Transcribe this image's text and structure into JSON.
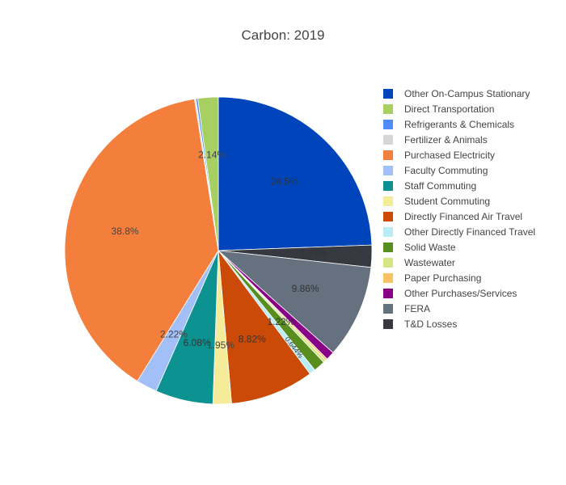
{
  "chart_data": {
    "type": "pie",
    "title": "Carbon: 2019",
    "direction": "clockwise",
    "start": "12 o'clock",
    "legend_position": "right",
    "slices": [
      {
        "label": "Other On-Campus Stationary",
        "value": 24.5,
        "text": "24.5%",
        "color": "#0044bb"
      },
      {
        "label": "T&D Losses",
        "value": 2.33,
        "text": "2.33%",
        "color": "#363940"
      },
      {
        "label": "FERA",
        "value": 9.86,
        "text": "9.86%",
        "color": "#66717f"
      },
      {
        "label": "Other Purchases/Services",
        "value": 0.9,
        "text": "",
        "color": "#880088"
      },
      {
        "label": "Paper Purchasing",
        "value": 0.2,
        "text": "",
        "color": "#f8c165"
      },
      {
        "label": "Wastewater",
        "value": 0.3,
        "text": "",
        "color": "#d4e684"
      },
      {
        "label": "Solid Waste",
        "value": 1.22,
        "text": "1.22%",
        "color": "#588d20"
      },
      {
        "label": "Other Directly Financed Travel",
        "value": 0.644,
        "text": "0.644%",
        "color": "#b9ecf4"
      },
      {
        "label": "Directly Financed Air Travel",
        "value": 8.82,
        "text": "8.82%",
        "color": "#cc4a08"
      },
      {
        "label": "Student Commuting",
        "value": 1.95,
        "text": "1.95%",
        "color": "#f4ec98"
      },
      {
        "label": "Staff Commuting",
        "value": 6.08,
        "text": "6.08%",
        "color": "#0c9290"
      },
      {
        "label": "Faculty Commuting",
        "value": 2.22,
        "text": "2.22%",
        "color": "#a2bff7"
      },
      {
        "label": "Purchased Electricity",
        "value": 38.8,
        "text": "38.8%",
        "color": "#f47f3c"
      },
      {
        "label": "Fertilizer & Animals",
        "value": 0.15,
        "text": "",
        "color": "#d6d6d6"
      },
      {
        "label": "Refrigerants & Chemicals",
        "value": 0.2,
        "text": "",
        "color": "#4c8cf4"
      },
      {
        "label": "Direct Transportation",
        "value": 2.14,
        "text": "2.14%",
        "color": "#a8cf62"
      }
    ],
    "legend": [
      {
        "label": "Other On-Campus Stationary",
        "color": "#0044bb"
      },
      {
        "label": "Direct Transportation",
        "color": "#a8cf62"
      },
      {
        "label": "Refrigerants & Chemicals",
        "color": "#4c8cf4"
      },
      {
        "label": "Fertilizer & Animals",
        "color": "#d6d6d6"
      },
      {
        "label": "Purchased Electricity",
        "color": "#f47f3c"
      },
      {
        "label": "Faculty Commuting",
        "color": "#a2bff7"
      },
      {
        "label": "Staff Commuting",
        "color": "#0c9290"
      },
      {
        "label": "Student Commuting",
        "color": "#f4ec98"
      },
      {
        "label": "Directly Financed Air Travel",
        "color": "#cc4a08"
      },
      {
        "label": "Other Directly Financed Travel",
        "color": "#b9ecf4"
      },
      {
        "label": "Solid Waste",
        "color": "#588d20"
      },
      {
        "label": "Wastewater",
        "color": "#d4e684"
      },
      {
        "label": "Paper Purchasing",
        "color": "#f8c165"
      },
      {
        "label": "Other Purchases/Services",
        "color": "#880088"
      },
      {
        "label": "FERA",
        "color": "#66717f"
      },
      {
        "label": "T&D Losses",
        "color": "#363940"
      }
    ]
  }
}
